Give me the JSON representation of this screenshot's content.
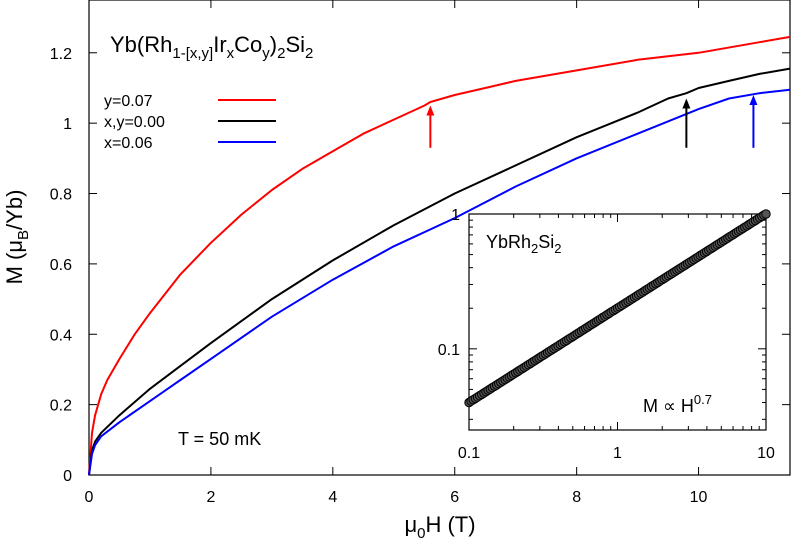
{
  "chart_data": [
    {
      "type": "line",
      "title_parts": [
        "Yb(Rh",
        "1-[x,y]",
        "Ir",
        "x",
        "Co",
        "y",
        ")",
        "2",
        "Si",
        "2"
      ],
      "xlabel_parts": [
        "μ",
        "0",
        "H (T)"
      ],
      "ylabel_parts": [
        "M (μ",
        "B",
        "/Yb)"
      ],
      "xlim": [
        0,
        11.5
      ],
      "ylim": [
        0,
        1.35
      ],
      "xticks": [
        "0",
        "2",
        "4",
        "6",
        "8",
        "10"
      ],
      "yticks": [
        "0",
        "0.2",
        "0.4",
        "0.6",
        "0.8",
        "1",
        "1.2"
      ],
      "annotation": "T = 50 mK",
      "legend_position": "top-left",
      "grid": false,
      "series": [
        {
          "name": "y=0.07",
          "color": "#ff0000",
          "x": [
            0,
            0.05,
            0.1,
            0.2,
            0.3,
            0.5,
            0.75,
            1,
            1.5,
            2,
            2.5,
            3,
            3.5,
            4,
            4.5,
            5,
            5.5,
            5.6,
            6,
            6.5,
            7,
            8,
            9,
            10,
            11,
            11.5
          ],
          "y": [
            0,
            0.12,
            0.17,
            0.23,
            0.27,
            0.33,
            0.4,
            0.46,
            0.57,
            0.66,
            0.74,
            0.81,
            0.87,
            0.92,
            0.97,
            1.01,
            1.05,
            1.06,
            1.08,
            1.1,
            1.12,
            1.15,
            1.18,
            1.2,
            1.23,
            1.245
          ]
        },
        {
          "name": "x,y=0.00",
          "color": "#000000",
          "x": [
            0,
            0.05,
            0.1,
            0.2,
            0.5,
            1,
            1.5,
            2,
            3,
            4,
            5,
            6,
            7,
            8,
            9,
            9.5,
            9.8,
            10,
            10.5,
            11,
            11.5
          ],
          "y": [
            0,
            0.07,
            0.095,
            0.12,
            0.17,
            0.245,
            0.31,
            0.375,
            0.5,
            0.61,
            0.71,
            0.8,
            0.88,
            0.96,
            1.03,
            1.07,
            1.085,
            1.1,
            1.12,
            1.14,
            1.155
          ]
        },
        {
          "name": "x=0.06",
          "color": "#0000ff",
          "x": [
            0,
            0.05,
            0.1,
            0.2,
            0.5,
            1,
            1.5,
            2,
            3,
            4,
            5,
            6,
            7,
            8,
            9,
            10,
            10.5,
            11,
            11.5
          ],
          "y": [
            0,
            0.06,
            0.085,
            0.11,
            0.15,
            0.21,
            0.27,
            0.33,
            0.45,
            0.555,
            0.65,
            0.73,
            0.82,
            0.9,
            0.97,
            1.04,
            1.07,
            1.085,
            1.095
          ]
        }
      ],
      "arrows": [
        {
          "x": 5.6,
          "color": "#ff0000",
          "y_from": 0.93,
          "y_to": 1.05
        },
        {
          "x": 9.8,
          "color": "#000000",
          "y_from": 0.93,
          "y_to": 1.07
        },
        {
          "x": 10.9,
          "color": "#0000ff",
          "y_from": 0.93,
          "y_to": 1.08
        }
      ]
    },
    {
      "type": "scatter",
      "scale": "log-log",
      "label_parts": [
        "YbRh",
        "2",
        "Si",
        "2"
      ],
      "formula_parts": [
        "M ∝ H",
        "0.7"
      ],
      "xlim": [
        0.1,
        10
      ],
      "ylim": [
        0.025,
        1.0
      ],
      "xticks": [
        "0.1",
        "1",
        "10"
      ],
      "yticks": [
        "0.1",
        "1"
      ],
      "fit_exponent": 0.7,
      "points": {
        "x_start": 0.1,
        "x_end": 10,
        "y_at_x_start": 0.04,
        "y_at_x_end": 1.0
      }
    }
  ],
  "colors": {
    "frame": "#000000",
    "marker_fill": "#555555"
  }
}
